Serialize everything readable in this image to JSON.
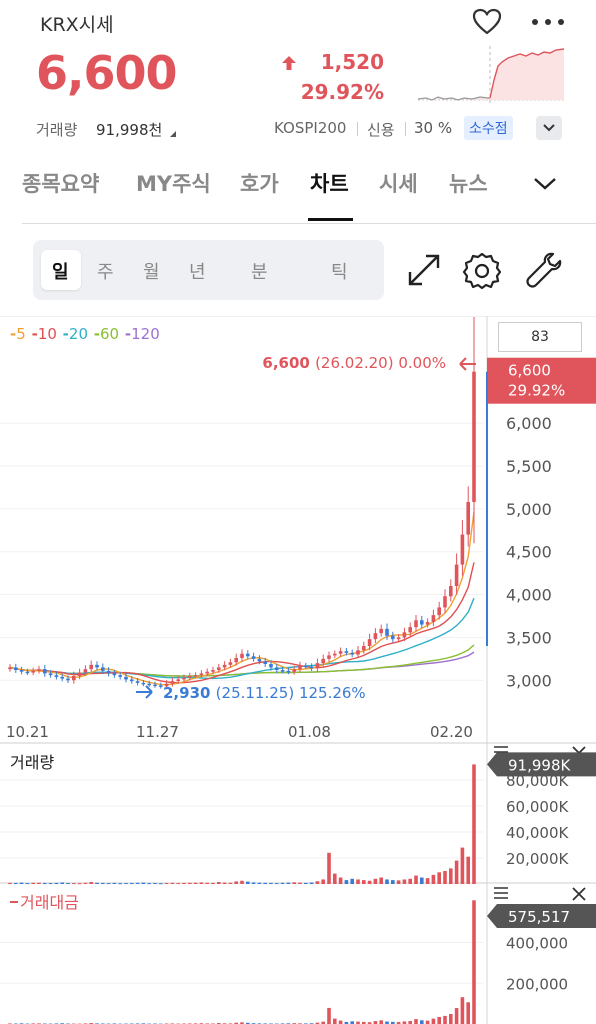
{
  "header": {
    "title": "KRX시세",
    "price": "6,600",
    "change_abs": "1,520",
    "change_pct": "29.92%",
    "volume_label": "거래량",
    "volume_value": "91,998천",
    "index": "KOSPI200",
    "credit_label": "신용",
    "credit_value": "30 %",
    "decimal_badge": "소수점"
  },
  "tabs": [
    {
      "label": "종목요약",
      "active": false
    },
    {
      "label": "MY주식",
      "active": false
    },
    {
      "label": "호가",
      "active": false
    },
    {
      "label": "차트",
      "active": true
    },
    {
      "label": "시세",
      "active": false
    },
    {
      "label": "뉴스",
      "active": false
    }
  ],
  "periods": [
    {
      "label": "일",
      "selected": true
    },
    {
      "label": "주",
      "selected": false
    },
    {
      "label": "월",
      "selected": false
    },
    {
      "label": "년",
      "selected": false
    },
    {
      "label": "분",
      "selected": false
    },
    {
      "label": "틱",
      "selected": false
    }
  ],
  "tools": {
    "fullscreen": "expand-icon",
    "settings": "gear-icon",
    "indicator": "wrench-icon"
  },
  "colors": {
    "up": "#e0555c",
    "down": "#3a7bd5",
    "ma5": "#f0a030",
    "ma10": "#e05050",
    "ma20": "#30b0c8",
    "ma60": "#88c030",
    "ma120": "#a070d0"
  },
  "chart_data": [
    {
      "type": "candlestick",
      "corner_value": "83",
      "moving_averages": [
        "5",
        "10",
        "20",
        "60",
        "120"
      ],
      "y_ticks": [
        "6,000",
        "5,500",
        "5,000",
        "4,500",
        "4,000",
        "3,500",
        "3,000"
      ],
      "y_range": [
        2700,
        6900
      ],
      "x_ticks": [
        "10.21",
        "11.27",
        "01.08",
        "02.20"
      ],
      "last_price_tag": {
        "value": "6,600",
        "pct": "29.92%"
      },
      "high_annotation": {
        "value": "6,600",
        "detail": "(26.02.20) 0.00%"
      },
      "low_annotation": {
        "value": "2,930",
        "detail": "(25.11.25) 125.26%"
      },
      "close_series": [
        3150,
        3120,
        3100,
        3090,
        3110,
        3130,
        3080,
        3060,
        3040,
        3020,
        3000,
        3050,
        3090,
        3130,
        3180,
        3150,
        3110,
        3080,
        3060,
        3040,
        3010,
        2990,
        2970,
        2960,
        2950,
        2940,
        2930,
        2960,
        2990,
        3010,
        3030,
        3050,
        3060,
        3080,
        3100,
        3120,
        3150,
        3180,
        3210,
        3260,
        3310,
        3280,
        3250,
        3220,
        3190,
        3150,
        3120,
        3110,
        3100,
        3130,
        3170,
        3160,
        3140,
        3200,
        3250,
        3290,
        3310,
        3340,
        3320,
        3300,
        3350,
        3400,
        3480,
        3550,
        3600,
        3520,
        3480,
        3500,
        3560,
        3620,
        3700,
        3650,
        3680,
        3760,
        3850,
        3980,
        4100,
        4350,
        4700,
        5080,
        6600
      ]
    },
    {
      "type": "bar",
      "title": "거래량",
      "y_ticks": [
        "80,000K",
        "60,000K",
        "40,000K",
        "20,000K"
      ],
      "y_range": [
        0,
        100000
      ],
      "last_value_tag": "91,998K",
      "values_k": [
        900,
        800,
        1100,
        700,
        900,
        1000,
        800,
        700,
        900,
        1200,
        800,
        700,
        600,
        900,
        1500,
        1000,
        800,
        700,
        900,
        600,
        700,
        800,
        900,
        1100,
        700,
        800,
        600,
        800,
        900,
        700,
        800,
        900,
        1000,
        1200,
        900,
        800,
        1500,
        1100,
        900,
        2000,
        2500,
        1800,
        1200,
        1000,
        900,
        800,
        700,
        900,
        1100,
        1300,
        1100,
        900,
        1200,
        2100,
        3500,
        24000,
        8000,
        5000,
        3000,
        4000,
        3500,
        3000,
        2500,
        4000,
        5000,
        3500,
        3000,
        2800,
        3500,
        4000,
        6500,
        5000,
        4500,
        7000,
        9000,
        10000,
        12000,
        18000,
        28000,
        21000,
        91998
      ]
    },
    {
      "type": "bar",
      "title": "거래대금",
      "y_ticks": [
        "400,000",
        "200,000"
      ],
      "y_range": [
        0,
        540000
      ],
      "last_value_tag": "575,517"
    }
  ]
}
